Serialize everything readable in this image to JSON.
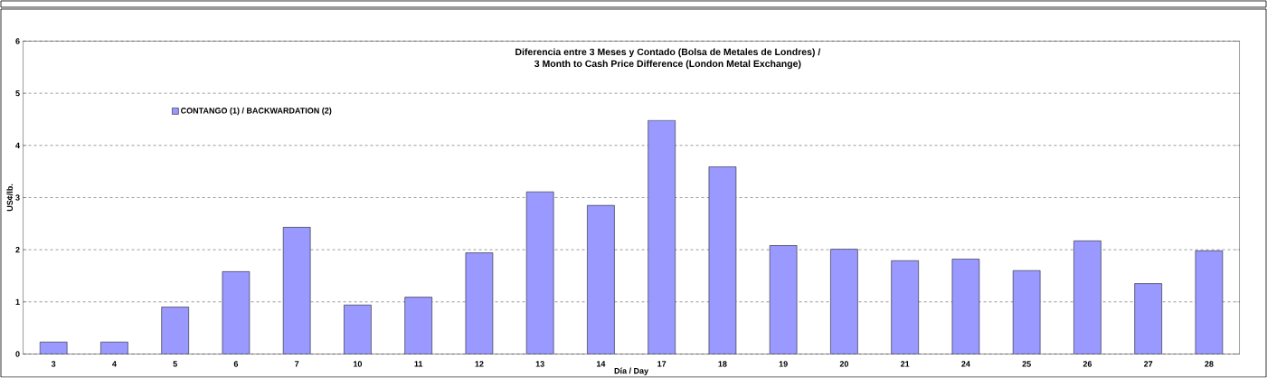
{
  "chart_data": {
    "type": "bar",
    "title": "Diferencia entre 3 Meses y Contado (Bolsa de Metales de Londres) /\n3 Month to Cash Price Difference (London Metal Exchange)",
    "xlabel": "Día / Day",
    "ylabel": "US¢/lb.",
    "categories": [
      "3",
      "4",
      "5",
      "6",
      "7",
      "10",
      "11",
      "12",
      "13",
      "14",
      "17",
      "18",
      "19",
      "20",
      "21",
      "24",
      "25",
      "26",
      "27",
      "28"
    ],
    "series": [
      {
        "name": "CONTANGO (1) / BACKWARDATION (2)",
        "color": "#9999ff",
        "values": [
          0.23,
          0.23,
          0.9,
          1.58,
          2.43,
          0.94,
          1.09,
          1.94,
          3.11,
          2.85,
          4.48,
          3.59,
          2.08,
          2.01,
          1.79,
          1.82,
          1.6,
          2.17,
          1.35,
          1.98
        ]
      }
    ],
    "ylim": [
      0,
      6
    ],
    "yticks": [
      0,
      1,
      2,
      3,
      4,
      5,
      6
    ],
    "grid": "y",
    "legend": "top left"
  }
}
